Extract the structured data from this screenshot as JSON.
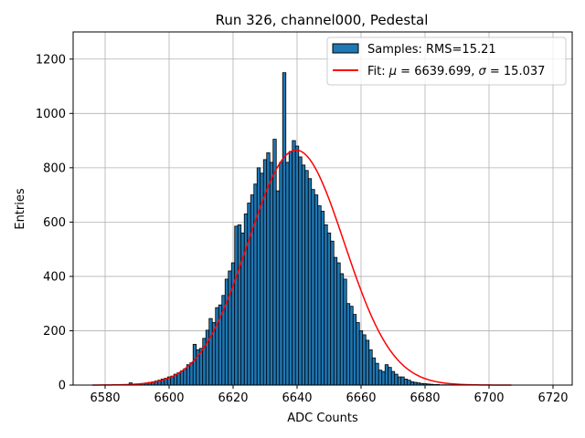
{
  "chart_data": {
    "type": "bar",
    "title": "Run 326, channel000, Pedestal",
    "xlabel": "ADC Counts",
    "ylabel": "Entries",
    "xlim": [
      6570,
      6726
    ],
    "ylim": [
      0,
      1300
    ],
    "xticks": [
      6580,
      6600,
      6620,
      6640,
      6660,
      6680,
      6700,
      6720
    ],
    "yticks": [
      0,
      200,
      400,
      600,
      800,
      1000,
      1200
    ],
    "grid": true,
    "legend_position": "top-right",
    "legend": {
      "histogram": "Samples: RMS=15.21",
      "fit_prefix": "Fit: ",
      "fit_mu_symbol": "μ",
      "fit_mid": " = 6639.699, ",
      "fit_sigma_symbol": "σ",
      "fit_suffix": " = 15.037"
    },
    "histogram": {
      "bin_width": 1,
      "x": [
        6588,
        6589,
        6590,
        6591,
        6592,
        6593,
        6594,
        6595,
        6596,
        6597,
        6598,
        6599,
        6600,
        6601,
        6602,
        6603,
        6604,
        6605,
        6606,
        6607,
        6608,
        6609,
        6610,
        6611,
        6612,
        6613,
        6614,
        6615,
        6616,
        6617,
        6618,
        6619,
        6620,
        6621,
        6622,
        6623,
        6624,
        6625,
        6626,
        6627,
        6628,
        6629,
        6630,
        6631,
        6632,
        6633,
        6634,
        6635,
        6636,
        6637,
        6638,
        6639,
        6640,
        6641,
        6642,
        6643,
        6644,
        6645,
        6646,
        6647,
        6648,
        6649,
        6650,
        6651,
        6652,
        6653,
        6654,
        6655,
        6656,
        6657,
        6658,
        6659,
        6660,
        6661,
        6662,
        6663,
        6664,
        6665,
        6666,
        6667,
        6668,
        6669,
        6670,
        6671,
        6672,
        6673,
        6674,
        6675,
        6676,
        6677,
        6678,
        6679,
        6680,
        6681,
        6682,
        6683,
        6684,
        6685,
        6686,
        6687,
        6688,
        6689,
        6690
      ],
      "values": [
        8,
        3,
        4,
        5,
        6,
        8,
        10,
        12,
        15,
        18,
        22,
        25,
        30,
        33,
        40,
        45,
        52,
        60,
        75,
        82,
        150,
        130,
        135,
        172,
        202,
        245,
        230,
        285,
        295,
        330,
        390,
        420,
        450,
        585,
        590,
        560,
        630,
        670,
        700,
        740,
        800,
        780,
        830,
        855,
        820,
        905,
        715,
        820,
        1150,
        820,
        860,
        900,
        880,
        840,
        810,
        790,
        760,
        720,
        700,
        660,
        640,
        590,
        560,
        530,
        470,
        450,
        410,
        390,
        300,
        290,
        260,
        230,
        200,
        185,
        165,
        130,
        100,
        80,
        55,
        50,
        75,
        65,
        50,
        40,
        30,
        30,
        22,
        18,
        12,
        10,
        8,
        6,
        5,
        4,
        3,
        2,
        2,
        1,
        1,
        1,
        1,
        1,
        1
      ]
    },
    "fit": {
      "mu": 6639.699,
      "sigma": 15.037,
      "amplitude": 865,
      "x_range": [
        6576,
        6707
      ]
    },
    "colors": {
      "bar_fill": "#1f77b4",
      "bar_edge": "#000000",
      "fit_line": "#ff0000",
      "grid": "#b0b0b0"
    }
  }
}
